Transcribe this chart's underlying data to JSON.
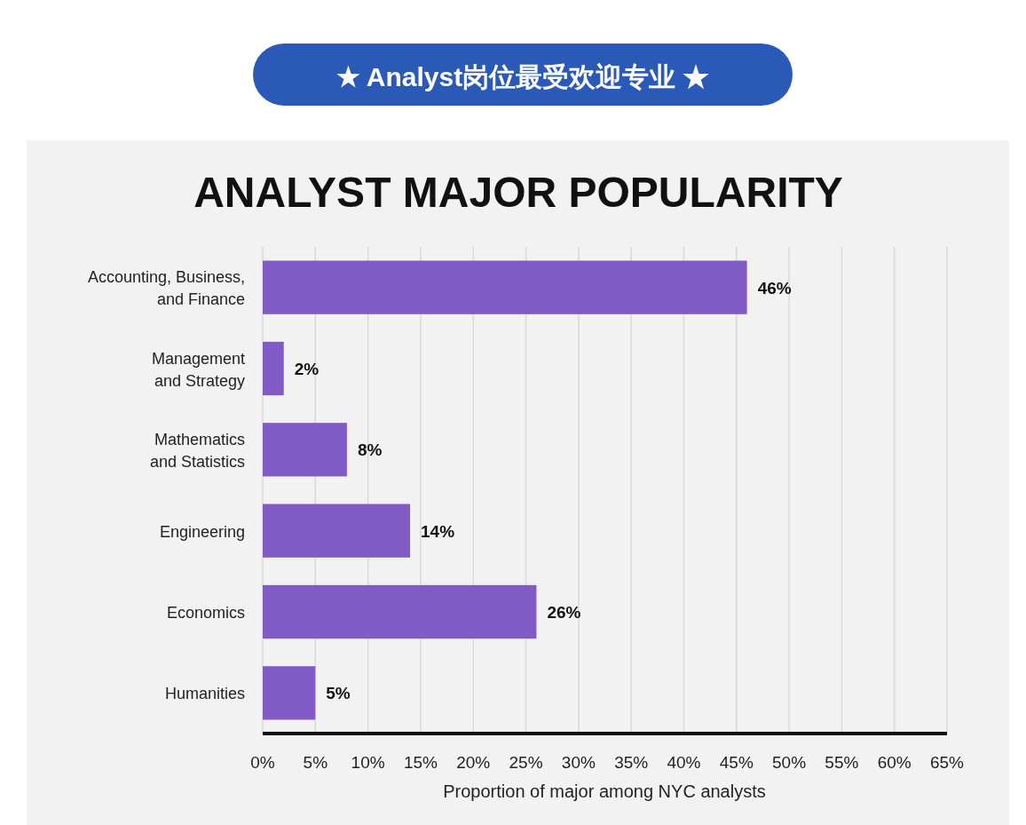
{
  "chart_data": {
    "type": "bar",
    "orientation": "horizontal",
    "title": "★ Analyst岗位最受欢迎专业 ★",
    "subtitle": "ANALYST MAJOR POPULARITY",
    "xlabel": "Proportion of major among NYC analysts",
    "categories": [
      "Accounting, Business,\nand Finance",
      "Management\nand Strategy",
      "Mathematics\nand Statistics",
      "Engineering",
      "Economics",
      "Humanities"
    ],
    "values": [
      46,
      2,
      8,
      14,
      26,
      5
    ],
    "value_labels": [
      "46%",
      "2%",
      "8%",
      "14%",
      "26%",
      "5%"
    ],
    "color": "#815bc5",
    "xlim": [
      0,
      65
    ],
    "xticks": [
      {
        "value": 0,
        "label": "0%"
      },
      {
        "value": 5,
        "label": "5%"
      },
      {
        "value": 10,
        "label": "10%"
      },
      {
        "value": 15,
        "label": "15%"
      },
      {
        "value": 20,
        "label": "20%"
      },
      {
        "value": 25,
        "label": "25%"
      },
      {
        "value": 30,
        "label": "30%"
      },
      {
        "value": 35,
        "label": "35%"
      },
      {
        "value": 40,
        "label": "40%"
      },
      {
        "value": 45,
        "label": "45%"
      },
      {
        "value": 50,
        "label": "50%"
      },
      {
        "value": 55,
        "label": "55%"
      },
      {
        "value": 60,
        "label": "60%"
      },
      {
        "value": 65,
        "label": "65%"
      }
    ],
    "grid": "x"
  }
}
